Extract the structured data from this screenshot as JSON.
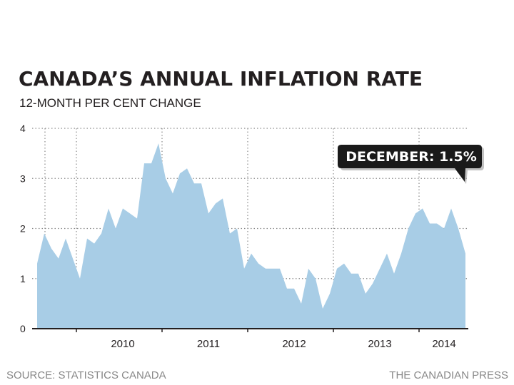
{
  "chart_data": {
    "type": "area",
    "title": "CANADA’S ANNUAL INFLATION RATE",
    "subtitle": "12-MONTH PER CENT CHANGE",
    "xlabel": "",
    "ylabel": "",
    "ylim": [
      0,
      4
    ],
    "yticks": [
      0,
      1,
      2,
      3,
      4
    ],
    "xtick_labels": [
      "2010",
      "2011",
      "2012",
      "2013",
      "2014"
    ],
    "x_start": "2009-07",
    "x_end": "2014-12",
    "grid": true,
    "series": [
      {
        "name": "12-month per cent change",
        "color": "#a8cde6",
        "values": [
          1.3,
          1.9,
          1.6,
          1.4,
          1.8,
          1.4,
          1.0,
          1.8,
          1.7,
          1.9,
          2.4,
          2.0,
          2.4,
          2.3,
          2.2,
          3.3,
          3.3,
          3.7,
          3.0,
          2.7,
          3.1,
          3.2,
          2.9,
          2.9,
          2.3,
          2.5,
          2.6,
          1.9,
          2.0,
          1.2,
          1.5,
          1.3,
          1.2,
          1.2,
          1.2,
          0.8,
          0.8,
          0.5,
          1.2,
          1.0,
          0.4,
          0.7,
          1.2,
          1.3,
          1.1,
          1.1,
          0.7,
          0.9,
          1.2,
          1.5,
          1.1,
          1.5,
          2.0,
          2.3,
          2.4,
          2.1,
          2.1,
          2.0,
          2.4,
          2.0,
          1.5
        ]
      }
    ],
    "callout": {
      "label": "DECEMBER: 1.5%",
      "color": "#1a1a1a"
    }
  },
  "footer": {
    "source": "SOURCE: STATISTICS CANADA",
    "credit": "THE CANADIAN PRESS"
  }
}
